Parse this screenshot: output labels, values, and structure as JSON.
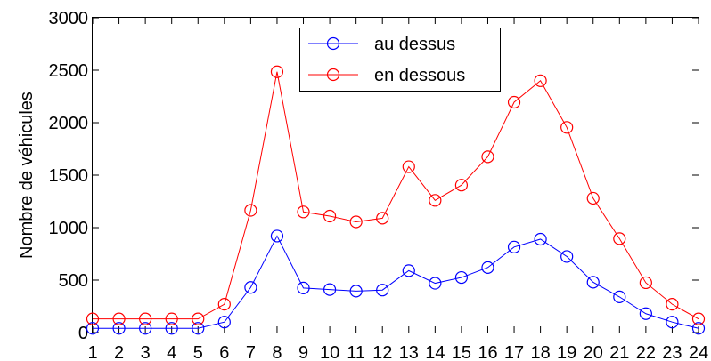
{
  "chart_data": {
    "type": "line",
    "title": "",
    "xlabel": "",
    "ylabel": "Nombre de véhicules",
    "x": [
      1,
      2,
      3,
      4,
      5,
      6,
      7,
      8,
      9,
      10,
      11,
      12,
      13,
      14,
      15,
      16,
      17,
      18,
      19,
      20,
      21,
      22,
      23,
      24
    ],
    "xlim": [
      1,
      24
    ],
    "ylim": [
      0,
      3000
    ],
    "yticks": [
      0,
      500,
      1000,
      1500,
      2000,
      2500,
      3000
    ],
    "grid": false,
    "legend_position": "top-center",
    "series": [
      {
        "name": "au dessus",
        "color": "#0000ff",
        "marker": "circle",
        "values": [
          40,
          40,
          40,
          40,
          40,
          100,
          430,
          920,
          425,
          410,
          395,
          405,
          590,
          470,
          525,
          620,
          815,
          890,
          725,
          480,
          340,
          180,
          100,
          40
        ]
      },
      {
        "name": "en dessous",
        "color": "#ff0000",
        "marker": "circle",
        "values": [
          130,
          130,
          130,
          130,
          130,
          270,
          1165,
          2485,
          1150,
          1110,
          1055,
          1090,
          1580,
          1260,
          1405,
          1675,
          2195,
          2400,
          1955,
          1280,
          895,
          475,
          270,
          130
        ]
      }
    ]
  }
}
